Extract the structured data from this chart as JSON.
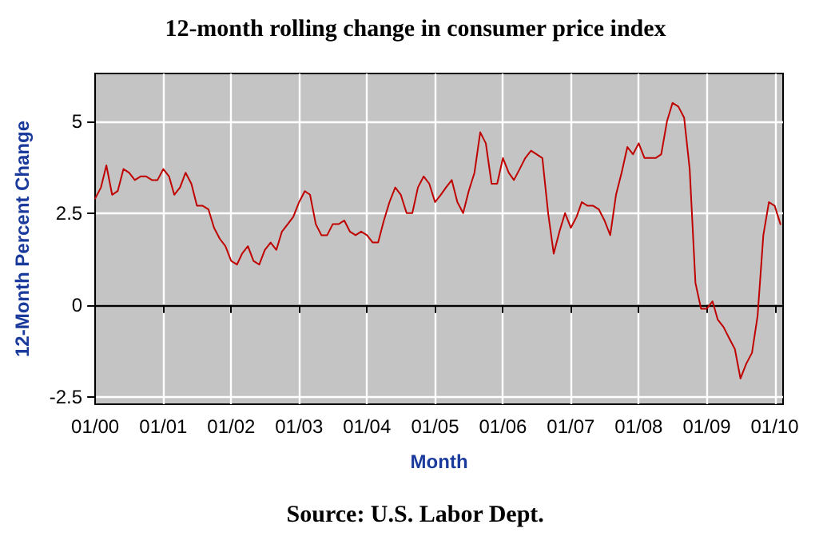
{
  "chart_data": {
    "type": "line",
    "title": "12-month rolling change in consumer price index",
    "xlabel": "Month",
    "ylabel": "12-Month Percent Change",
    "annotations": [
      "Source: U.S. Labor Dept."
    ],
    "x": [
      "2000-01",
      "2000-02",
      "2000-03",
      "2000-04",
      "2000-05",
      "2000-06",
      "2000-07",
      "2000-08",
      "2000-09",
      "2000-10",
      "2000-11",
      "2000-12",
      "2001-01",
      "2001-02",
      "2001-03",
      "2001-04",
      "2001-05",
      "2001-06",
      "2001-07",
      "2001-08",
      "2001-09",
      "2001-10",
      "2001-11",
      "2001-12",
      "2002-01",
      "2002-02",
      "2002-03",
      "2002-04",
      "2002-05",
      "2002-06",
      "2002-07",
      "2002-08",
      "2002-09",
      "2002-10",
      "2002-11",
      "2002-12",
      "2003-01",
      "2003-02",
      "2003-03",
      "2003-04",
      "2003-05",
      "2003-06",
      "2003-07",
      "2003-08",
      "2003-09",
      "2003-10",
      "2003-11",
      "2003-12",
      "2004-01",
      "2004-02",
      "2004-03",
      "2004-04",
      "2004-05",
      "2004-06",
      "2004-07",
      "2004-08",
      "2004-09",
      "2004-10",
      "2004-11",
      "2004-12",
      "2005-01",
      "2005-02",
      "2005-03",
      "2005-04",
      "2005-05",
      "2005-06",
      "2005-07",
      "2005-08",
      "2005-09",
      "2005-10",
      "2005-11",
      "2005-12",
      "2006-01",
      "2006-02",
      "2006-03",
      "2006-04",
      "2006-05",
      "2006-06",
      "2006-07",
      "2006-08",
      "2006-09",
      "2006-10",
      "2006-11",
      "2006-12",
      "2007-01",
      "2007-02",
      "2007-03",
      "2007-04",
      "2007-05",
      "2007-06",
      "2007-07",
      "2007-08",
      "2007-09",
      "2007-10",
      "2007-11",
      "2007-12",
      "2008-01",
      "2008-02",
      "2008-03",
      "2008-04",
      "2008-05",
      "2008-06",
      "2008-07",
      "2008-08",
      "2008-09",
      "2008-10",
      "2008-11",
      "2008-12",
      "2009-01",
      "2009-02",
      "2009-03",
      "2009-04",
      "2009-05",
      "2009-06",
      "2009-07",
      "2009-08",
      "2009-09",
      "2009-10",
      "2009-11",
      "2009-12",
      "2010-01",
      "2010-02"
    ],
    "series": [
      {
        "color": "#c00000",
        "values": [
          2.9,
          3.2,
          3.8,
          3.0,
          3.1,
          3.7,
          3.6,
          3.4,
          3.5,
          3.5,
          3.4,
          3.4,
          3.7,
          3.5,
          3.0,
          3.2,
          3.6,
          3.3,
          2.7,
          2.7,
          2.6,
          2.1,
          1.8,
          1.6,
          1.2,
          1.1,
          1.4,
          1.6,
          1.2,
          1.1,
          1.5,
          1.7,
          1.5,
          2.0,
          2.2,
          2.4,
          2.8,
          3.1,
          3.0,
          2.2,
          1.9,
          1.9,
          2.2,
          2.2,
          2.3,
          2.0,
          1.9,
          2.0,
          1.9,
          1.7,
          1.7,
          2.3,
          2.8,
          3.2,
          3.0,
          2.5,
          2.5,
          3.2,
          3.5,
          3.3,
          2.8,
          3.0,
          3.2,
          3.4,
          2.8,
          2.5,
          3.1,
          3.6,
          4.7,
          4.4,
          3.3,
          3.3,
          4.0,
          3.6,
          3.4,
          3.7,
          4.0,
          4.2,
          4.1,
          4.0,
          2.5,
          1.4,
          2.0,
          2.5,
          2.1,
          2.4,
          2.8,
          2.7,
          2.7,
          2.6,
          2.3,
          1.9,
          3.0,
          3.6,
          4.3,
          4.1,
          4.4,
          4.0,
          4.0,
          4.0,
          4.1,
          5.0,
          5.5,
          5.4,
          5.1,
          3.7,
          0.6,
          -0.1,
          -0.1,
          0.1,
          -0.4,
          -0.6,
          -0.9,
          -1.2,
          -2.0,
          -1.6,
          -1.3,
          -0.3,
          1.9,
          2.8,
          2.7,
          2.2
        ]
      }
    ],
    "xlim": [
      "2000-01",
      "2010-02-15"
    ],
    "xticks": [
      {
        "value": "2000-01",
        "label": "01/00"
      },
      {
        "value": "2001-01",
        "label": "01/01"
      },
      {
        "value": "2002-01",
        "label": "01/02"
      },
      {
        "value": "2003-01",
        "label": "01/03"
      },
      {
        "value": "2004-01",
        "label": "01/04"
      },
      {
        "value": "2005-01",
        "label": "01/05"
      },
      {
        "value": "2006-01",
        "label": "01/06"
      },
      {
        "value": "2007-01",
        "label": "01/07"
      },
      {
        "value": "2008-01",
        "label": "01/08"
      },
      {
        "value": "2009-01",
        "label": "01/09"
      },
      {
        "value": "2010-01",
        "label": "01/10"
      }
    ],
    "ylim": [
      -2.7,
      6.3
    ],
    "yticks": [
      -2.5,
      0,
      2.5,
      5
    ],
    "ref_lines": [
      {
        "axis": "y",
        "value": 0,
        "color": "#000000"
      }
    ],
    "grid": true,
    "marker": "none",
    "line_style": "solid"
  }
}
